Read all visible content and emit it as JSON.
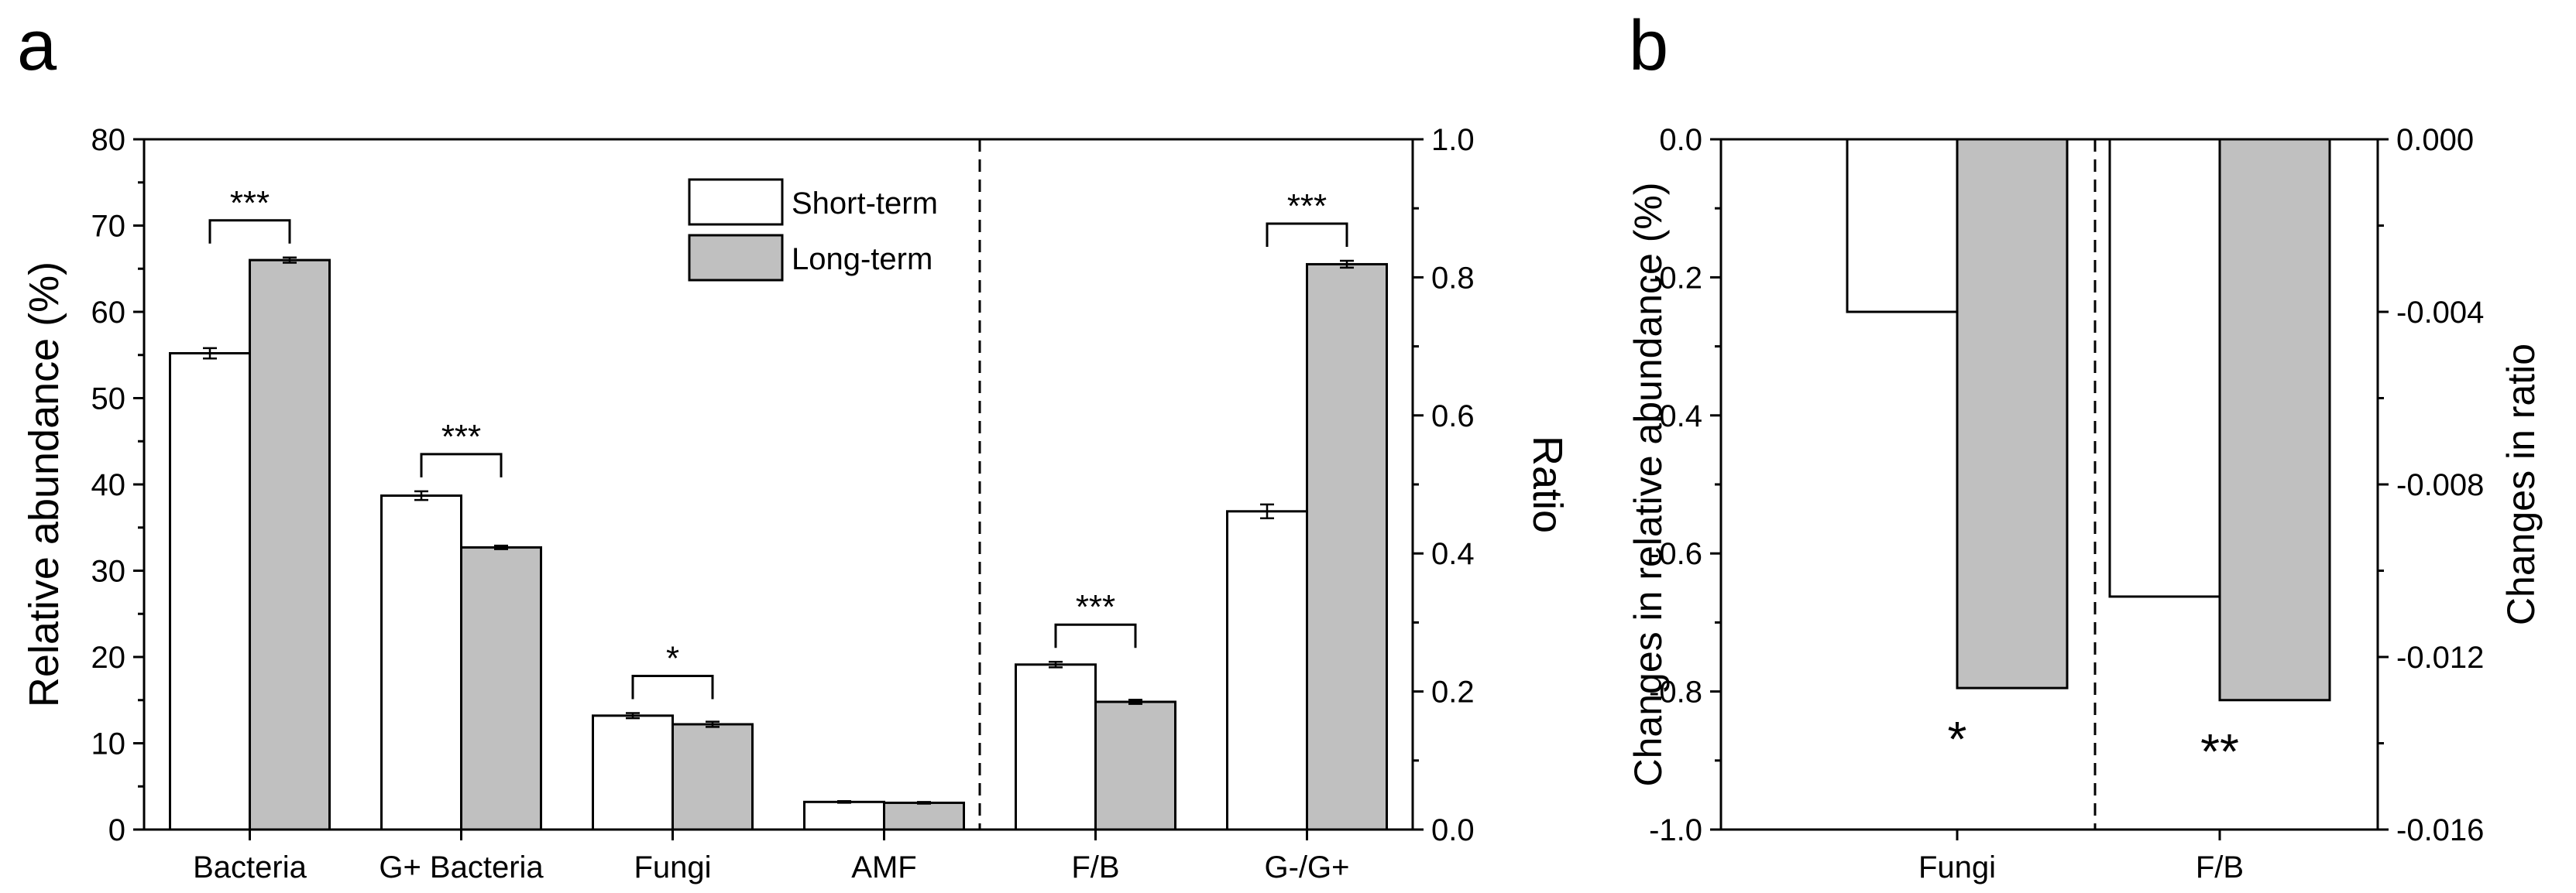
{
  "chart_data": [
    {
      "panel_label": "a",
      "type": "bar",
      "ylabel": "Relative abundance (%)",
      "y2label": "Ratio",
      "ylim": [
        0,
        80
      ],
      "y2lim": [
        0,
        1.0
      ],
      "yticks": [
        "0",
        "10",
        "20",
        "30",
        "40",
        "50",
        "60",
        "70",
        "80"
      ],
      "y2ticks": [
        "0.0",
        "0.2",
        "0.4",
        "0.6",
        "0.8",
        "1.0"
      ],
      "categories": [
        "Bacteria",
        "G+ Bacteria",
        "Fungi",
        "AMF",
        "F/B",
        "G-/G+"
      ],
      "category_axis": [
        "left",
        "left",
        "left",
        "left",
        "right",
        "right"
      ],
      "legend": [
        "Short-term",
        "Long-term"
      ],
      "legend_position": "top-center",
      "series": [
        {
          "name": "Short-term",
          "color": "#ffffff",
          "values": [
            55.2,
            38.7,
            13.2,
            3.2,
            0.239,
            0.461
          ],
          "errors": [
            0.6,
            0.5,
            0.3,
            0.1,
            0.004,
            0.01
          ]
        },
        {
          "name": "Long-term",
          "color": "#c0c0c0",
          "values": [
            66.0,
            32.7,
            12.2,
            3.1,
            0.185,
            0.819
          ],
          "errors": [
            0.3,
            0.2,
            0.3,
            0.1,
            0.003,
            0.005
          ]
        }
      ],
      "significance": [
        {
          "category": "Bacteria",
          "label": "***"
        },
        {
          "category": "G+ Bacteria",
          "label": "***"
        },
        {
          "category": "Fungi",
          "label": "*"
        },
        {
          "category": "F/B",
          "label": "***"
        },
        {
          "category": "G-/G+",
          "label": "***"
        }
      ]
    },
    {
      "panel_label": "b",
      "type": "bar",
      "ylabel": "Changes in relative abundance (%)",
      "y2label": "Changes in ratio",
      "ylim": [
        -1.0,
        0.0
      ],
      "y2lim": [
        -0.016,
        0.0
      ],
      "yticks": [
        "0.0",
        "-0.2",
        "-0.4",
        "-0.6",
        "-0.8",
        "-1.0"
      ],
      "y2ticks": [
        "0.000",
        "-0.004",
        "-0.008",
        "-0.012",
        "-0.016"
      ],
      "categories": [
        "Fungi",
        "F/B"
      ],
      "category_axis": [
        "left",
        "right"
      ],
      "series": [
        {
          "name": "Short-term",
          "color": "#ffffff",
          "values": [
            -0.25,
            -0.0106
          ]
        },
        {
          "name": "Long-term",
          "color": "#c0c0c0",
          "values": [
            -0.795,
            -0.013
          ]
        }
      ],
      "significance": [
        {
          "category": "Fungi",
          "label": "*"
        },
        {
          "category": "F/B",
          "label": "**"
        }
      ]
    }
  ]
}
